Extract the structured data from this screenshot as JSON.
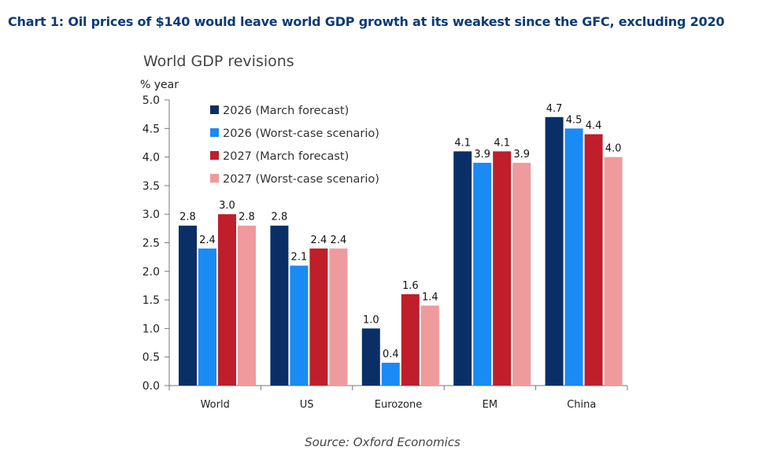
{
  "heading": "Chart 1: Oil prices of $140 would leave world GDP growth at its weakest since the GFC, excluding 2020",
  "source": "Source: Oxford Economics",
  "chart_data": {
    "type": "bar",
    "title": "World GDP revisions",
    "ylabel": "% year",
    "xlabel": "",
    "ylim": [
      0,
      5.0
    ],
    "yticks": [
      "0.0",
      "0.5",
      "1.0",
      "1.5",
      "2.0",
      "2.5",
      "3.0",
      "3.5",
      "4.0",
      "4.5",
      "5.0"
    ],
    "grid": false,
    "legend_position": "top-left",
    "categories": [
      "World",
      "US",
      "Eurozone",
      "EM",
      "China"
    ],
    "series": [
      {
        "name": "2026 (March forecast)",
        "color": "#0a2f66",
        "values": [
          2.8,
          2.8,
          1.0,
          4.1,
          4.7
        ]
      },
      {
        "name": "2026 (Worst-case scenario)",
        "color": "#1a8af5",
        "values": [
          2.4,
          2.1,
          0.4,
          3.9,
          4.5
        ]
      },
      {
        "name": "2027 (March forecast)",
        "color": "#bf1e2a",
        "values": [
          3.0,
          2.4,
          1.6,
          4.1,
          4.4
        ]
      },
      {
        "name": "2027 (Worst-case scenario)",
        "color": "#ef9a9c",
        "values": [
          2.8,
          2.4,
          1.4,
          3.9,
          4.0
        ]
      }
    ]
  }
}
